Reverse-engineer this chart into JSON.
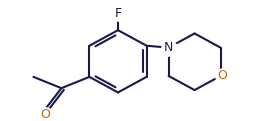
{
  "bg_color": "#ffffff",
  "bond_color": "#1a1a4a",
  "atom_color": "#1a1a4a",
  "o_color": "#cc6600",
  "line_width": 1.5,
  "font_size": 8.5,
  "fig_width": 2.76,
  "fig_height": 1.21,
  "dpi": 100,
  "xlim": [
    0,
    2.76
  ],
  "ylim": [
    0,
    1.21
  ]
}
